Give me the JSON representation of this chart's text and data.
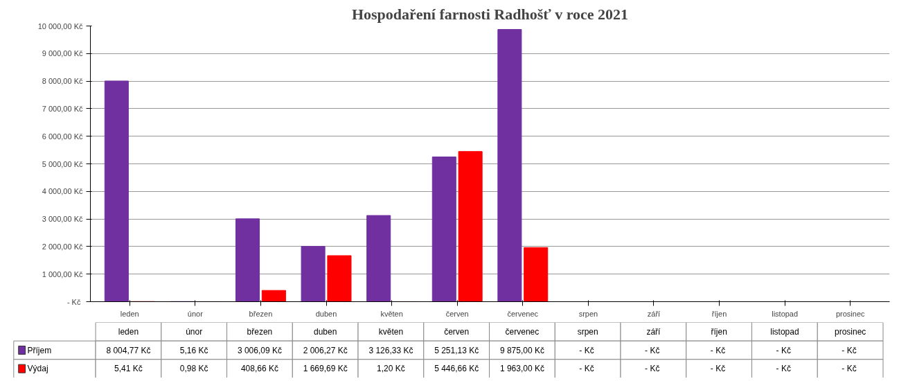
{
  "chart_data": {
    "type": "bar",
    "title": "Hospodaření farnosti Radhošť v roce 2021",
    "categories": [
      "leden",
      "únor",
      "březen",
      "duben",
      "květen",
      "červen",
      "červenec",
      "srpen",
      "září",
      "říjen",
      "listopad",
      "prosinec"
    ],
    "series": [
      {
        "name": "Příjem",
        "color": "#7030a0",
        "values": [
          8004.77,
          5.16,
          3006.09,
          2006.27,
          3126.33,
          5251.13,
          9875.0,
          0,
          0,
          0,
          0,
          0
        ],
        "value_labels": [
          "8 004,77 Kč",
          "5,16 Kč",
          "3 006,09 Kč",
          "2 006,27 Kč",
          "3 126,33 Kč",
          "5 251,13 Kč",
          "9 875,00 Kč",
          "-  Kč",
          "-  Kč",
          "-  Kč",
          "-  Kč",
          "-  Kč"
        ]
      },
      {
        "name": "Výdaj",
        "color": "#ff0000",
        "values": [
          5.41,
          0.98,
          408.66,
          1669.69,
          1.2,
          5446.66,
          1963.0,
          0,
          0,
          0,
          0,
          0
        ],
        "value_labels": [
          "5,41 Kč",
          "0,98 Kč",
          "408,66 Kč",
          "1 669,69 Kč",
          "1,20 Kč",
          "5 446,66 Kč",
          "1 963,00 Kč",
          "-  Kč",
          "-  Kč",
          "-  Kč",
          "-  Kč",
          "-  Kč"
        ]
      }
    ],
    "ylim": [
      0,
      10000
    ],
    "yticks": [
      {
        "value": 0,
        "label": "-  Kč"
      },
      {
        "value": 1000,
        "label": "1 000,00 Kč"
      },
      {
        "value": 2000,
        "label": "2 000,00 Kč"
      },
      {
        "value": 3000,
        "label": "3 000,00 Kč"
      },
      {
        "value": 4000,
        "label": "4 000,00 Kč"
      },
      {
        "value": 5000,
        "label": "5 000,00 Kč"
      },
      {
        "value": 6000,
        "label": "6 000,00 Kč"
      },
      {
        "value": 7000,
        "label": "7 000,00 Kč"
      },
      {
        "value": 8000,
        "label": "8 000,00 Kč"
      },
      {
        "value": 9000,
        "label": "9 000,00 Kč"
      },
      {
        "value": 10000,
        "label": "10 000,00 Kč"
      }
    ],
    "grid": "y",
    "legend": "bottom"
  }
}
